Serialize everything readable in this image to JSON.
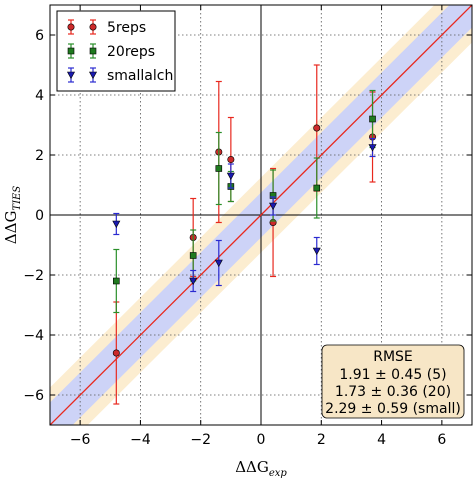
{
  "chart_data": {
    "type": "scatter",
    "xlabel": "ΔΔG",
    "xlabel_sub": "exp",
    "ylabel": "ΔΔG",
    "ylabel_sub": "TIES",
    "xlim": [
      -7,
      7
    ],
    "ylim": [
      -7,
      7
    ],
    "x_ticks": [
      -6,
      -4,
      -2,
      0,
      2,
      4,
      6
    ],
    "y_ticks": [
      -6,
      -4,
      -2,
      0,
      2,
      4,
      6
    ],
    "x_tick_labels": [
      "−6",
      "−4",
      "−2",
      "0",
      "2",
      "4",
      "6"
    ],
    "y_tick_labels": [
      "−6",
      "−4",
      "−2",
      "0",
      "2",
      "4",
      "6"
    ],
    "grid": true,
    "legend_position": "top-left",
    "bands": [
      {
        "half_width": 1.25,
        "color": "#fcedd0"
      },
      {
        "half_width": 0.75,
        "color": "#cdd3f7"
      }
    ],
    "identity_line_color": "#e8281e",
    "series": [
      {
        "name": "5reps",
        "marker": "circle",
        "color": "#cc2a2a",
        "error_color": "#e8281e",
        "points": [
          {
            "x": -4.8,
            "y": -4.6,
            "yerr": 1.7
          },
          {
            "x": -2.25,
            "y": -0.75,
            "yerr": 1.3
          },
          {
            "x": -1.4,
            "y": 2.1,
            "yerr": 2.35
          },
          {
            "x": -1.0,
            "y": 1.85,
            "yerr": 1.4
          },
          {
            "x": 0.4,
            "y": -0.25,
            "yerr": 1.8
          },
          {
            "x": 1.85,
            "y": 2.9,
            "yerr": 2.1
          },
          {
            "x": 3.7,
            "y": 2.6,
            "yerr": 1.5
          }
        ]
      },
      {
        "name": "20reps",
        "marker": "square",
        "color": "#1f7a1f",
        "error_color": "#2a8f2a",
        "points": [
          {
            "x": -4.8,
            "y": -2.2,
            "yerr": 1.05
          },
          {
            "x": -2.25,
            "y": -1.35,
            "yerr": 0.85
          },
          {
            "x": -1.4,
            "y": 1.55,
            "yerr": 1.2
          },
          {
            "x": -1.0,
            "y": 0.95,
            "yerr": 0.5
          },
          {
            "x": 0.4,
            "y": 0.65,
            "yerr": 0.85
          },
          {
            "x": 1.85,
            "y": 0.9,
            "yerr": 1.0
          },
          {
            "x": 3.7,
            "y": 3.2,
            "yerr": 0.95
          }
        ]
      },
      {
        "name": "smallalch",
        "marker": "triangle-down",
        "color": "#1a1ab0",
        "error_color": "#2a2ad0",
        "points": [
          {
            "x": -4.8,
            "y": -0.3,
            "yerr": 0.35
          },
          {
            "x": -2.25,
            "y": -2.2,
            "yerr": 0.35
          },
          {
            "x": -1.4,
            "y": -1.6,
            "yerr": 0.75
          },
          {
            "x": -1.0,
            "y": 1.3,
            "yerr": 0.4
          },
          {
            "x": 0.4,
            "y": 0.3,
            "yerr": 0.3
          },
          {
            "x": 1.85,
            "y": -1.2,
            "yerr": 0.45
          },
          {
            "x": 3.7,
            "y": 2.25,
            "yerr": 0.3
          }
        ]
      }
    ],
    "annotation": {
      "title": "RMSE",
      "lines": [
        "1.91 ± 0.45 (5)",
        "1.73 ± 0.36 (20)",
        "2.29 ± 0.59 (small)"
      ],
      "position": "bottom-right",
      "background": "#f7e6c6"
    }
  }
}
